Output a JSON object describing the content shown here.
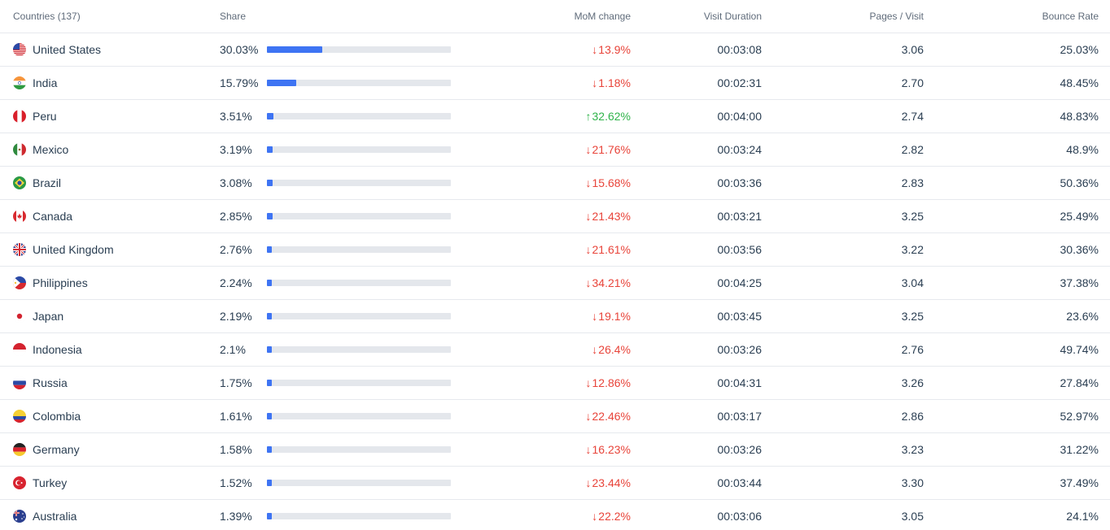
{
  "headers": {
    "countries": "Countries (137)",
    "share": "Share",
    "mom": "MoM change",
    "duration": "Visit Duration",
    "pages": "Pages / Visit",
    "bounce": "Bounce Rate"
  },
  "rows": [
    {
      "country": "United States",
      "flag": "us",
      "share": "30.03%",
      "share_value": 30.03,
      "mom": "13.9%",
      "dir": "down",
      "duration": "00:03:08",
      "pages": "3.06",
      "bounce": "25.03%"
    },
    {
      "country": "India",
      "flag": "in",
      "share": "15.79%",
      "share_value": 15.79,
      "mom": "1.18%",
      "dir": "down",
      "duration": "00:02:31",
      "pages": "2.70",
      "bounce": "48.45%"
    },
    {
      "country": "Peru",
      "flag": "pe",
      "share": "3.51%",
      "share_value": 3.51,
      "mom": "32.62%",
      "dir": "up",
      "duration": "00:04:00",
      "pages": "2.74",
      "bounce": "48.83%"
    },
    {
      "country": "Mexico",
      "flag": "mx",
      "share": "3.19%",
      "share_value": 3.19,
      "mom": "21.76%",
      "dir": "down",
      "duration": "00:03:24",
      "pages": "2.82",
      "bounce": "48.9%"
    },
    {
      "country": "Brazil",
      "flag": "br",
      "share": "3.08%",
      "share_value": 3.08,
      "mom": "15.68%",
      "dir": "down",
      "duration": "00:03:36",
      "pages": "2.83",
      "bounce": "50.36%"
    },
    {
      "country": "Canada",
      "flag": "ca",
      "share": "2.85%",
      "share_value": 2.85,
      "mom": "21.43%",
      "dir": "down",
      "duration": "00:03:21",
      "pages": "3.25",
      "bounce": "25.49%"
    },
    {
      "country": "United Kingdom",
      "flag": "gb",
      "share": "2.76%",
      "share_value": 2.76,
      "mom": "21.61%",
      "dir": "down",
      "duration": "00:03:56",
      "pages": "3.22",
      "bounce": "30.36%"
    },
    {
      "country": "Philippines",
      "flag": "ph",
      "share": "2.24%",
      "share_value": 2.24,
      "mom": "34.21%",
      "dir": "down",
      "duration": "00:04:25",
      "pages": "3.04",
      "bounce": "37.38%"
    },
    {
      "country": "Japan",
      "flag": "jp",
      "share": "2.19%",
      "share_value": 2.19,
      "mom": "19.1%",
      "dir": "down",
      "duration": "00:03:45",
      "pages": "3.25",
      "bounce": "23.6%"
    },
    {
      "country": "Indonesia",
      "flag": "id",
      "share": "2.1%",
      "share_value": 2.1,
      "mom": "26.4%",
      "dir": "down",
      "duration": "00:03:26",
      "pages": "2.76",
      "bounce": "49.74%"
    },
    {
      "country": "Russia",
      "flag": "ru",
      "share": "1.75%",
      "share_value": 1.75,
      "mom": "12.86%",
      "dir": "down",
      "duration": "00:04:31",
      "pages": "3.26",
      "bounce": "27.84%"
    },
    {
      "country": "Colombia",
      "flag": "co",
      "share": "1.61%",
      "share_value": 1.61,
      "mom": "22.46%",
      "dir": "down",
      "duration": "00:03:17",
      "pages": "2.86",
      "bounce": "52.97%"
    },
    {
      "country": "Germany",
      "flag": "de",
      "share": "1.58%",
      "share_value": 1.58,
      "mom": "16.23%",
      "dir": "down",
      "duration": "00:03:26",
      "pages": "3.23",
      "bounce": "31.22%"
    },
    {
      "country": "Turkey",
      "flag": "tr",
      "share": "1.52%",
      "share_value": 1.52,
      "mom": "23.44%",
      "dir": "down",
      "duration": "00:03:44",
      "pages": "3.30",
      "bounce": "37.49%"
    },
    {
      "country": "Australia",
      "flag": "au",
      "share": "1.39%",
      "share_value": 1.39,
      "mom": "22.2%",
      "dir": "down",
      "duration": "00:03:06",
      "pages": "3.05",
      "bounce": "24.1%"
    }
  ],
  "colors": {
    "bar_fill": "#3e74f3",
    "bar_track": "#e4e7ec",
    "down": "#e8443a",
    "up": "#2fb34a"
  }
}
